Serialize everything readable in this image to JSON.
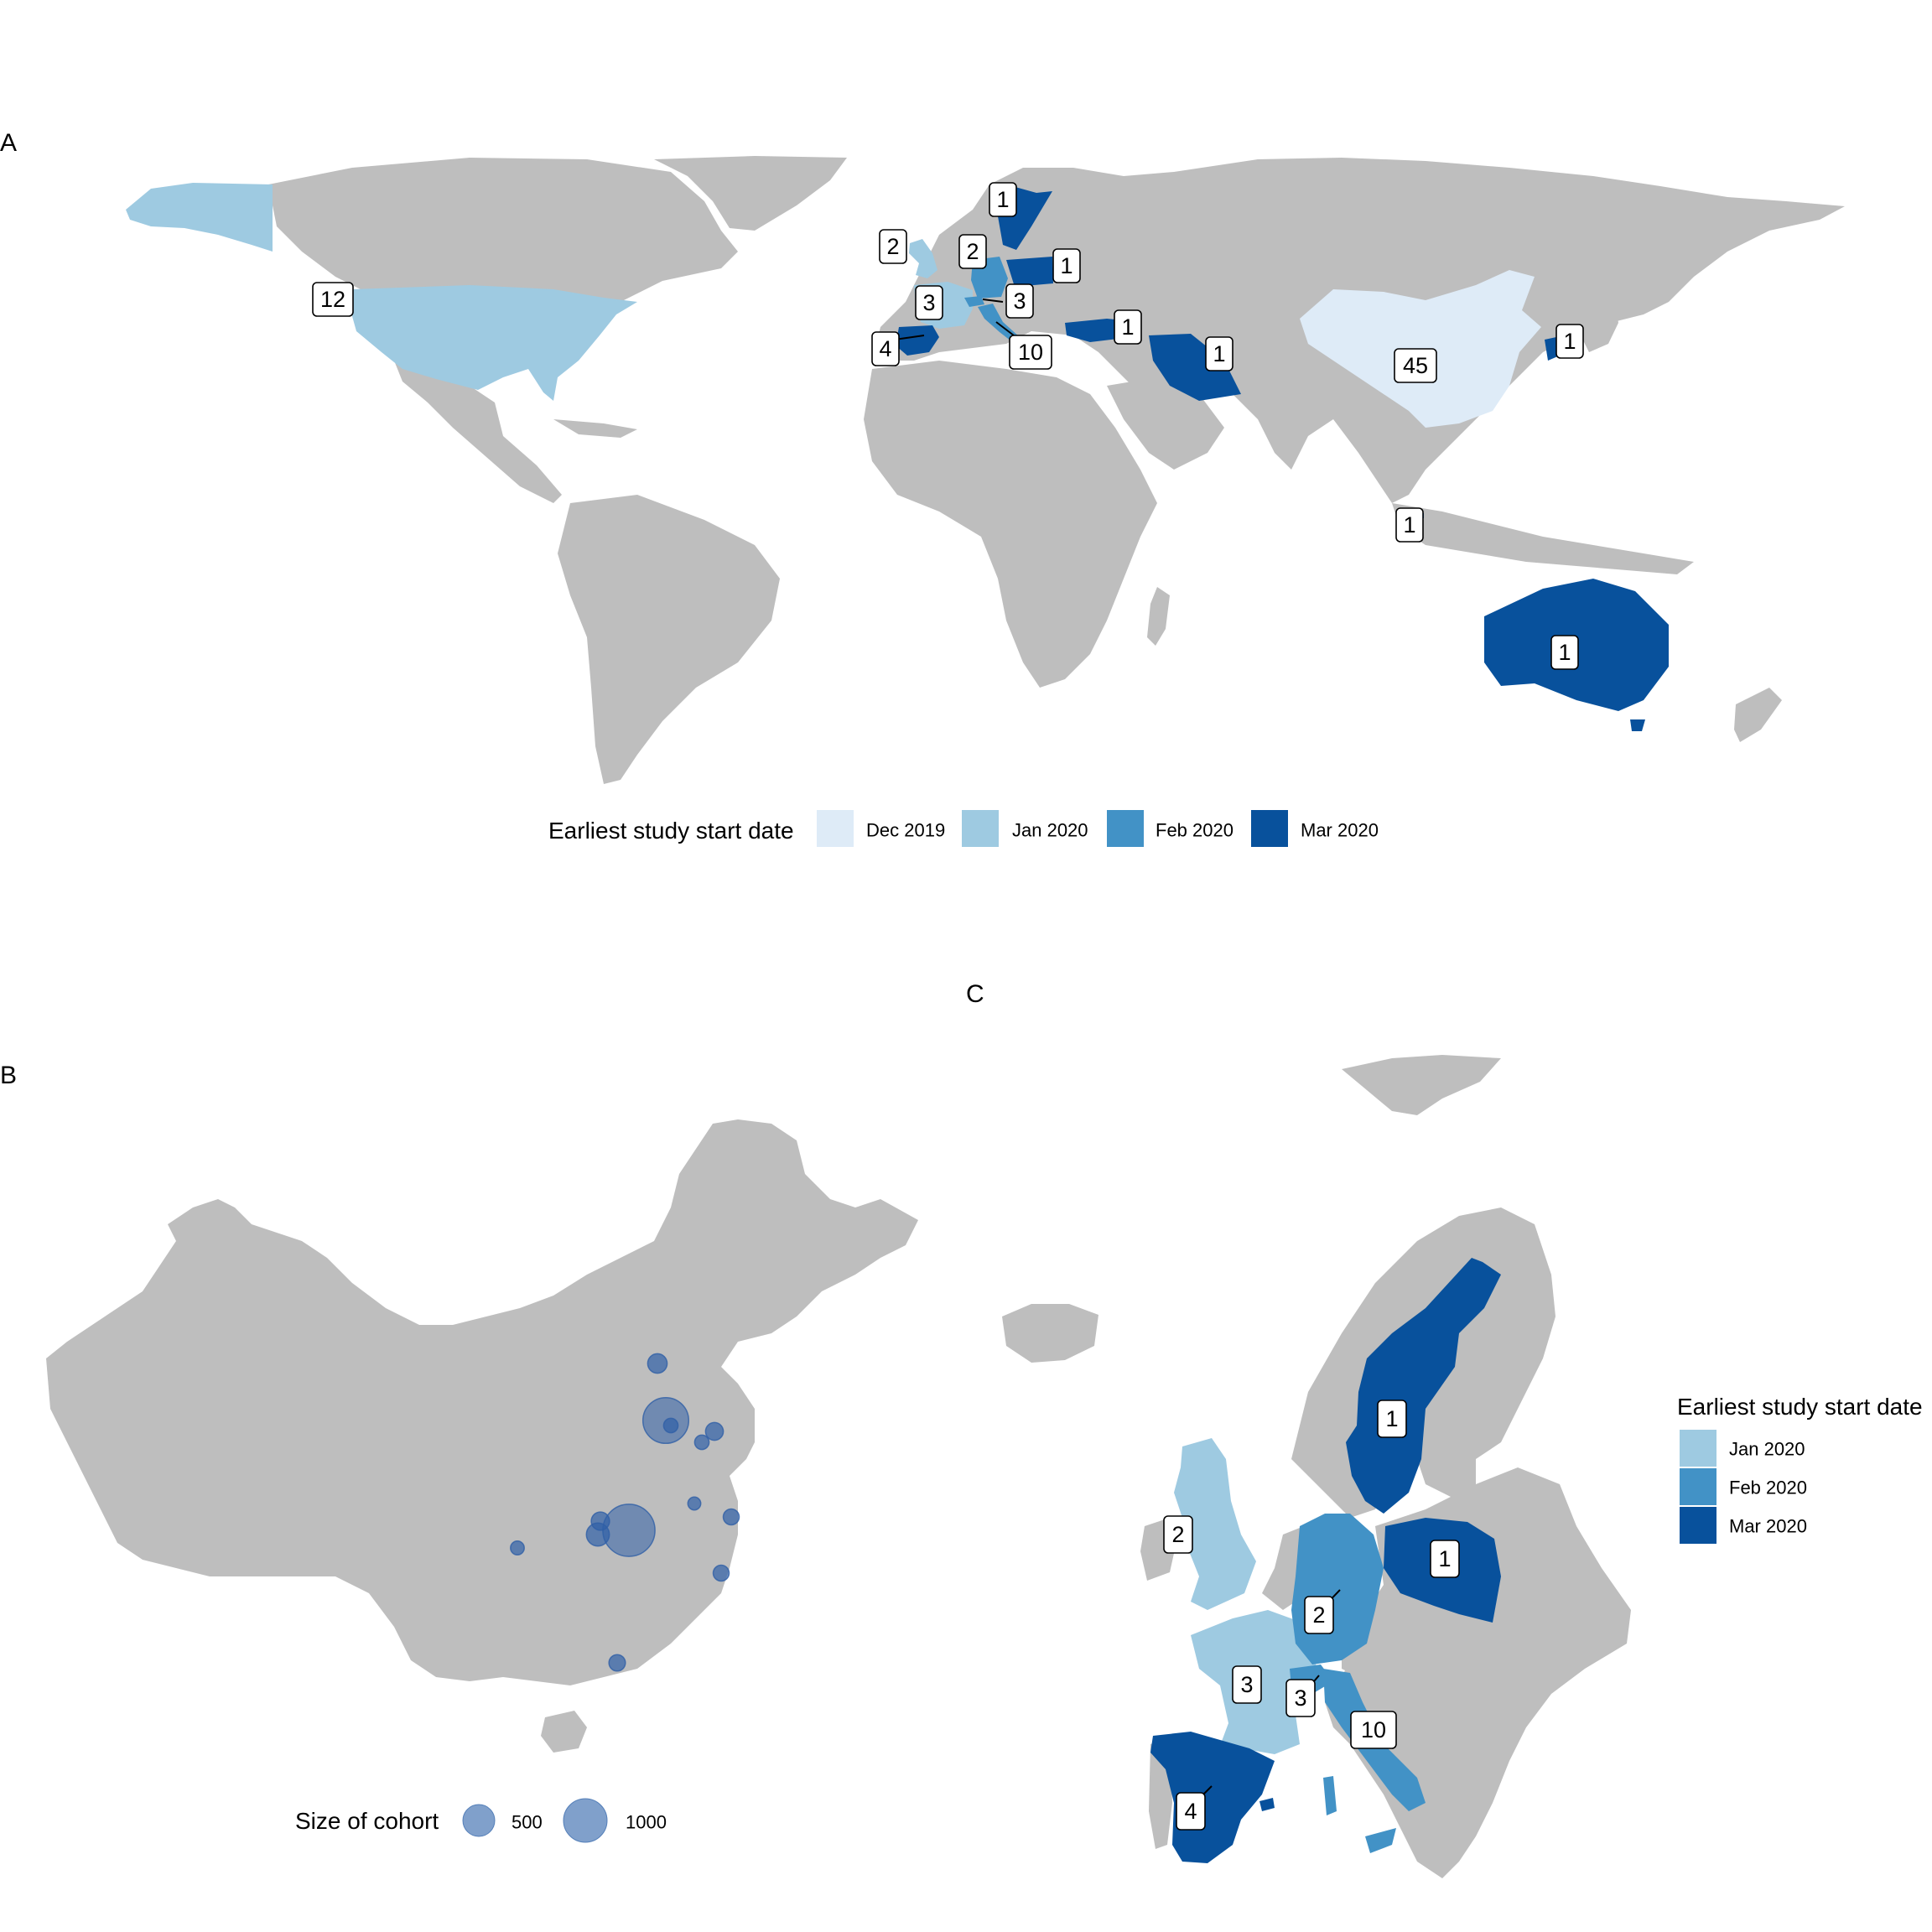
{
  "panels": {
    "a": {
      "letter": "A",
      "legend": {
        "title": "Earliest study start date",
        "items": [
          {
            "label": "Dec 2019",
            "color": "#deebf7"
          },
          {
            "label": "Jan 2020",
            "color": "#9ecae1"
          },
          {
            "label": "Feb 2020",
            "color": "#4292c6"
          },
          {
            "label": "Mar 2020",
            "color": "#08519c"
          }
        ]
      }
    },
    "b": {
      "letter": "B",
      "legend": {
        "title": "Size of cohort",
        "items": [
          {
            "label": "500",
            "value": 500
          },
          {
            "label": "1000",
            "value": 1000
          }
        ]
      }
    },
    "c": {
      "letter": "C",
      "legend": {
        "title": "Earliest study start date",
        "items": [
          {
            "label": "Jan 2020",
            "color": "#9ecae1"
          },
          {
            "label": "Feb 2020",
            "color": "#4292c6"
          },
          {
            "label": "Mar 2020",
            "color": "#08519c"
          }
        ]
      }
    }
  },
  "chart_data": [
    {
      "type": "choropleth",
      "panel": "A",
      "legend_title": "Earliest study start date",
      "regions": [
        {
          "region": "United States",
          "studies": "12",
          "start": "Jan 2020"
        },
        {
          "region": "United Kingdom",
          "studies": "2",
          "start": "Jan 2020"
        },
        {
          "region": "France",
          "studies": "3",
          "start": "Jan 2020"
        },
        {
          "region": "Spain",
          "studies": "4",
          "start": "Mar 2020"
        },
        {
          "region": "Germany",
          "studies": "2",
          "start": "Feb 2020"
        },
        {
          "region": "Switzerland",
          "studies": "3",
          "start": "Feb 2020"
        },
        {
          "region": "Italy",
          "studies": "10",
          "start": "Feb 2020"
        },
        {
          "region": "Sweden",
          "studies": "1",
          "start": "Mar 2020"
        },
        {
          "region": "Poland",
          "studies": "1",
          "start": "Mar 2020"
        },
        {
          "region": "Turkey",
          "studies": "1",
          "start": "Mar 2020"
        },
        {
          "region": "Iran",
          "studies": "1",
          "start": "Mar 2020"
        },
        {
          "region": "China",
          "studies": "45",
          "start": "Dec 2019"
        },
        {
          "region": "South Korea",
          "studies": "1",
          "start": "Mar 2020"
        },
        {
          "region": "Singapore",
          "studies": "1",
          "start": "Mar 2020"
        },
        {
          "region": "Australia",
          "studies": "1",
          "start": "Mar 2020"
        }
      ]
    },
    {
      "type": "scatter",
      "panel": "B",
      "legend_title": "Size of cohort",
      "legend_sizes": [
        500,
        1000
      ],
      "points": [
        {
          "site": 1,
          "size": 180
        },
        {
          "site": 2,
          "size": 1000
        },
        {
          "site": 3,
          "size": 150
        },
        {
          "site": 4,
          "size": 100
        },
        {
          "site": 5,
          "size": 80
        },
        {
          "site": 6,
          "size": 120
        },
        {
          "site": 7,
          "size": 1300
        },
        {
          "site": 8,
          "size": 250
        },
        {
          "site": 9,
          "size": 160
        },
        {
          "site": 10,
          "size": 90
        },
        {
          "site": 11,
          "size": 120
        },
        {
          "site": 12,
          "size": 130
        },
        {
          "site": 13,
          "size": 100
        }
      ]
    },
    {
      "type": "choropleth",
      "panel": "C",
      "legend_title": "Earliest study start date",
      "regions": [
        {
          "region": "United Kingdom",
          "studies": "2",
          "start": "Jan 2020"
        },
        {
          "region": "France",
          "studies": "3",
          "start": "Jan 2020"
        },
        {
          "region": "Spain",
          "studies": "4",
          "start": "Mar 2020"
        },
        {
          "region": "Germany",
          "studies": "2",
          "start": "Feb 2020"
        },
        {
          "region": "Switzerland",
          "studies": "3",
          "start": "Feb 2020"
        },
        {
          "region": "Italy",
          "studies": "10",
          "start": "Feb 2020"
        },
        {
          "region": "Sweden",
          "studies": "1",
          "start": "Mar 2020"
        },
        {
          "region": "Poland",
          "studies": "1",
          "start": "Mar 2020"
        }
      ]
    }
  ]
}
